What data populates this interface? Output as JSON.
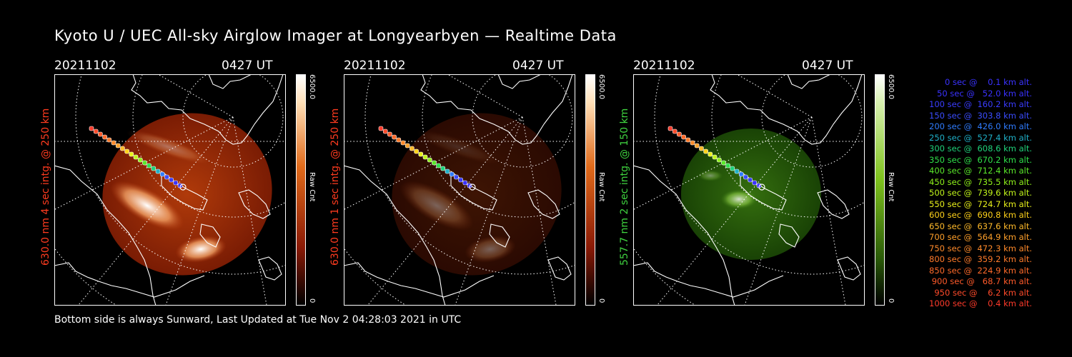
{
  "title": "Kyoto U / UEC All-sky Airglow Imager at Longyearbyen — Realtime Data",
  "footer": "Bottom side is always Sunward, Last Updated at Tue Nov  2 04:28:03 2021 in UTC",
  "panels": [
    {
      "date": "20211102",
      "time": "0427 UT",
      "vlabel": "630.0 nm 4 sec intg. @ 250 km",
      "cbar_max": "6500.0",
      "cbar_unit": "Raw Cnt",
      "cbar_min": "0",
      "label_color": "#ff3b1f",
      "tint": "red",
      "brightness": 1.0
    },
    {
      "date": "20211102",
      "time": "0427 UT",
      "vlabel": "630.0 nm 1 sec intg. @ 250 km",
      "cbar_max": "6500.0",
      "cbar_unit": "Raw Cnt",
      "cbar_min": "0",
      "label_color": "#ff3b1f",
      "tint": "red",
      "brightness": 0.35
    },
    {
      "date": "20211102",
      "time": "0427 UT",
      "vlabel": "557.7 nm 2 sec intg. @ 150 km",
      "cbar_max": "6500.0",
      "cbar_unit": "Raw Cnt",
      "cbar_min": "0",
      "label_color": "#3fd23f",
      "tint": "green",
      "brightness": 0.6
    }
  ],
  "legend": [
    {
      "text": "0 sec @    0.1 km alt.",
      "color": "#3a32ff"
    },
    {
      "text": "50 sec @   52.0 km alt.",
      "color": "#3a32ff"
    },
    {
      "text": "100 sec @  160.2 km alt.",
      "color": "#3a3cff"
    },
    {
      "text": "150 sec @  303.8 km alt.",
      "color": "#3a4cff"
    },
    {
      "text": "200 sec @  426.0 km alt.",
      "color": "#2f7cff"
    },
    {
      "text": "250 sec @  527.4 km alt.",
      "color": "#1fb0c8"
    },
    {
      "text": "300 sec @  608.6 km alt.",
      "color": "#1fd27a"
    },
    {
      "text": "350 sec @  670.2 km alt.",
      "color": "#2fe04a"
    },
    {
      "text": "400 sec @  712.4 km alt.",
      "color": "#5ae82a"
    },
    {
      "text": "450 sec @  735.5 km alt.",
      "color": "#8ff01a"
    },
    {
      "text": "500 sec @  739.6 km alt.",
      "color": "#c0f41a"
    },
    {
      "text": "550 sec @  724.7 km alt.",
      "color": "#e8f01a"
    },
    {
      "text": "600 sec @  690.8 km alt.",
      "color": "#ffd21a"
    },
    {
      "text": "650 sec @  637.6 km alt.",
      "color": "#ffba2a"
    },
    {
      "text": "700 sec @  564.9 km alt.",
      "color": "#ffa02a"
    },
    {
      "text": "750 sec @  472.3 km alt.",
      "color": "#ff8a2a"
    },
    {
      "text": "800 sec @  359.2 km alt.",
      "color": "#ff7a2a"
    },
    {
      "text": "850 sec @  224.9 km alt.",
      "color": "#ff6a2a"
    },
    {
      "text": "900 sec @   68.7 km alt.",
      "color": "#ff5a2a"
    },
    {
      "text": "950 sec @    6.2 km alt.",
      "color": "#ff4a2a"
    },
    {
      "text": "1000 sec @    0.4 km alt.",
      "color": "#ff3a2a"
    }
  ]
}
